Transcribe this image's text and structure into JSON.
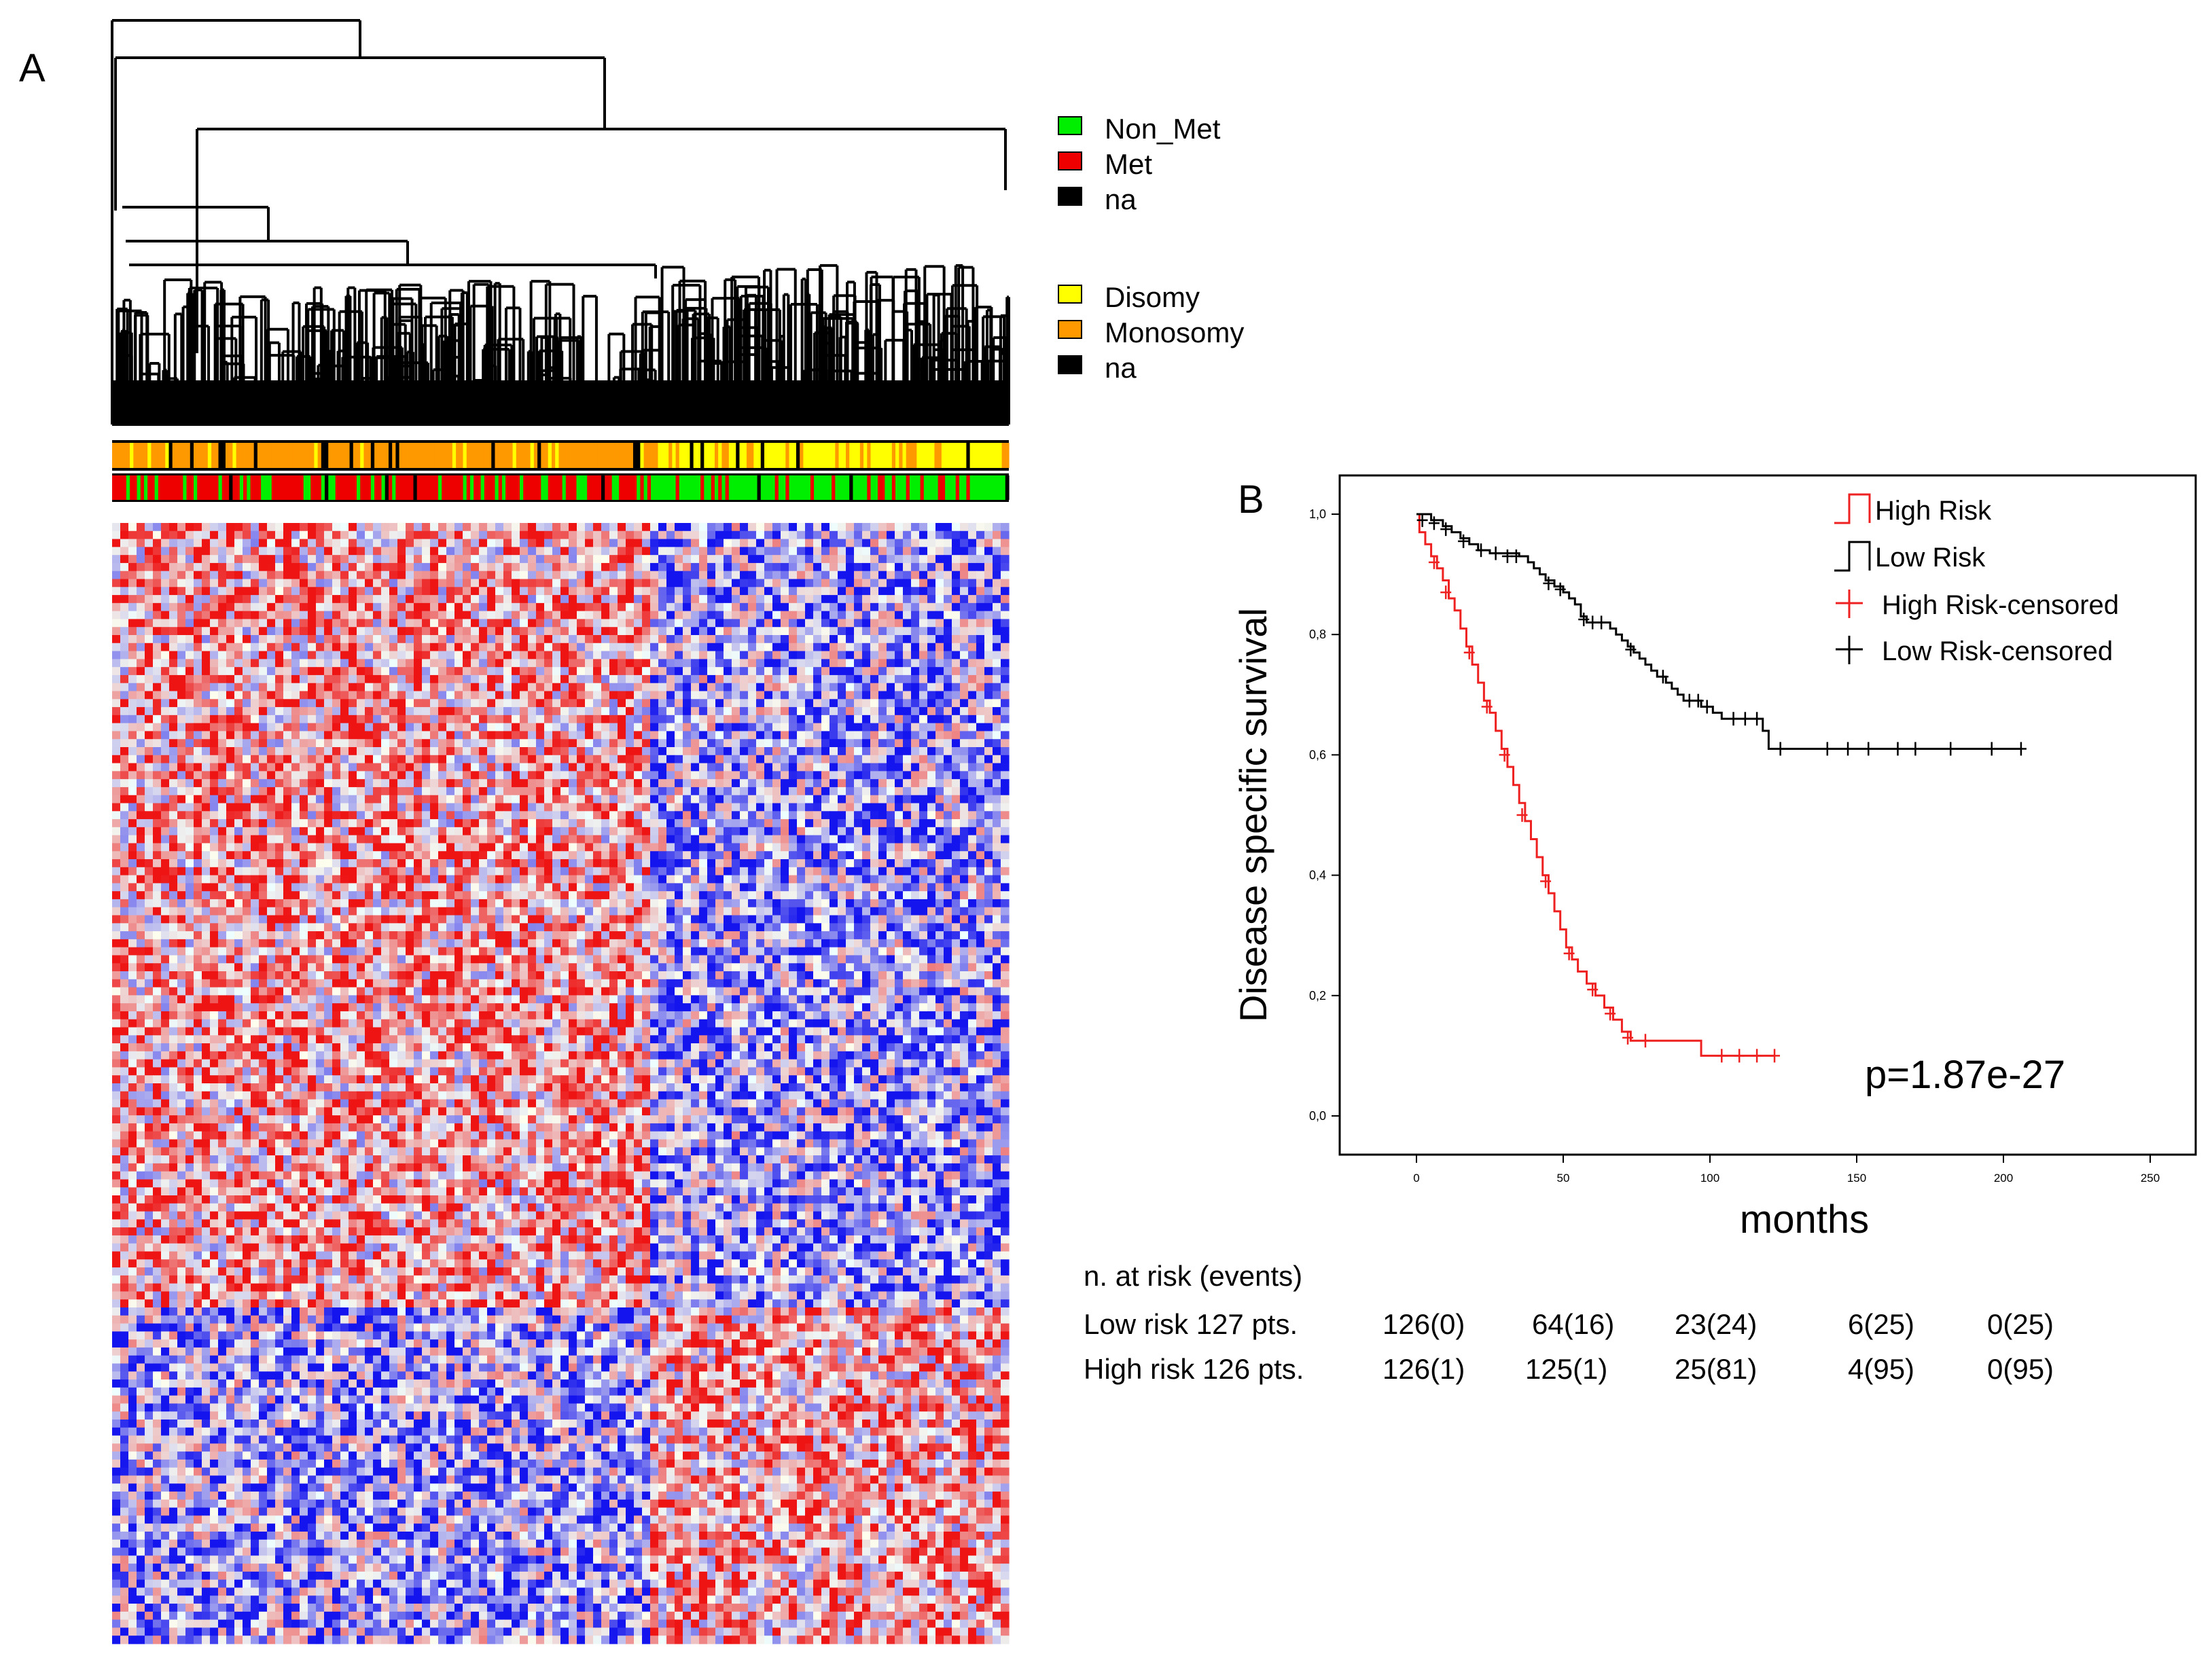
{
  "panels": {
    "a_label": "A",
    "b_label": "B"
  },
  "legend_metastasis": [
    {
      "label": "Non_Met",
      "color": "#00ee00"
    },
    {
      "label": "Met",
      "color": "#ee0000"
    },
    {
      "label": "na",
      "color": "#000000"
    }
  ],
  "legend_chromosome": [
    {
      "label": "Disomy",
      "color": "#ffff00"
    },
    {
      "label": "Monosomy",
      "color": "#ff9900"
    },
    {
      "label": "na",
      "color": "#000000"
    }
  ],
  "heatmap": {
    "low_color": "#0000ee",
    "mid_color": "#ffffff",
    "high_color": "#ee0000",
    "cluster_split_fraction": 0.6
  },
  "chart_data": {
    "type": "line",
    "xlabel": "months",
    "ylabel": "Disease specific survival",
    "xlim": [
      0,
      250
    ],
    "ylim": [
      0,
      1
    ],
    "x_ticks": [
      0,
      50,
      100,
      150,
      200,
      250
    ],
    "y_ticks": [
      "0,0",
      "0,2",
      "0,4",
      "0,6",
      "0,8",
      "1,0"
    ],
    "annotation": "p=1.87e-27",
    "legend": [
      {
        "label": "High Risk",
        "color": "#ee2020",
        "symbol": "step"
      },
      {
        "label": "Low Risk",
        "color": "#000000",
        "symbol": "step"
      },
      {
        "label": "High Risk-censored",
        "color": "#ee2020",
        "symbol": "plus"
      },
      {
        "label": "Low Risk-censored",
        "color": "#000000",
        "symbol": "plus"
      }
    ],
    "series": [
      {
        "name": "High Risk",
        "color": "#ee2020",
        "steps": [
          [
            0,
            1.0
          ],
          [
            1,
            0.97
          ],
          [
            3,
            0.95
          ],
          [
            5,
            0.93
          ],
          [
            7,
            0.91
          ],
          [
            9,
            0.89
          ],
          [
            11,
            0.86
          ],
          [
            13,
            0.84
          ],
          [
            15,
            0.81
          ],
          [
            17,
            0.78
          ],
          [
            19,
            0.75
          ],
          [
            21,
            0.72
          ],
          [
            23,
            0.69
          ],
          [
            25,
            0.67
          ],
          [
            27,
            0.64
          ],
          [
            29,
            0.61
          ],
          [
            31,
            0.58
          ],
          [
            33,
            0.55
          ],
          [
            35,
            0.52
          ],
          [
            37,
            0.49
          ],
          [
            39,
            0.46
          ],
          [
            41,
            0.43
          ],
          [
            43,
            0.4
          ],
          [
            45,
            0.37
          ],
          [
            47,
            0.34
          ],
          [
            49,
            0.31
          ],
          [
            51,
            0.28
          ],
          [
            53,
            0.26
          ],
          [
            55,
            0.24
          ],
          [
            58,
            0.22
          ],
          [
            61,
            0.2
          ],
          [
            64,
            0.18
          ],
          [
            67,
            0.16
          ],
          [
            70,
            0.14
          ],
          [
            73,
            0.125
          ],
          [
            97,
            0.1
          ],
          [
            122,
            0.1
          ]
        ],
        "censored": [
          [
            6,
            0.92
          ],
          [
            10,
            0.87
          ],
          [
            18,
            0.77
          ],
          [
            24,
            0.68
          ],
          [
            30,
            0.6
          ],
          [
            36,
            0.5
          ],
          [
            44,
            0.39
          ],
          [
            52,
            0.27
          ],
          [
            60,
            0.21
          ],
          [
            66,
            0.17
          ],
          [
            72,
            0.13
          ],
          [
            78,
            0.125
          ],
          [
            104,
            0.1
          ],
          [
            110,
            0.1
          ],
          [
            116,
            0.1
          ],
          [
            122,
            0.1
          ]
        ]
      },
      {
        "name": "Low Risk",
        "color": "#000000",
        "steps": [
          [
            0,
            1.0
          ],
          [
            5,
            0.99
          ],
          [
            9,
            0.98
          ],
          [
            12,
            0.97
          ],
          [
            15,
            0.96
          ],
          [
            18,
            0.95
          ],
          [
            21,
            0.94
          ],
          [
            25,
            0.935
          ],
          [
            35,
            0.93
          ],
          [
            38,
            0.92
          ],
          [
            40,
            0.91
          ],
          [
            42,
            0.9
          ],
          [
            44,
            0.89
          ],
          [
            47,
            0.88
          ],
          [
            50,
            0.87
          ],
          [
            52,
            0.86
          ],
          [
            54,
            0.85
          ],
          [
            56,
            0.83
          ],
          [
            58,
            0.82
          ],
          [
            66,
            0.81
          ],
          [
            68,
            0.8
          ],
          [
            70,
            0.79
          ],
          [
            72,
            0.78
          ],
          [
            74,
            0.77
          ],
          [
            76,
            0.76
          ],
          [
            78,
            0.75
          ],
          [
            80,
            0.74
          ],
          [
            82,
            0.73
          ],
          [
            85,
            0.72
          ],
          [
            87,
            0.71
          ],
          [
            89,
            0.7
          ],
          [
            91,
            0.69
          ],
          [
            97,
            0.68
          ],
          [
            101,
            0.67
          ],
          [
            104,
            0.66
          ],
          [
            118,
            0.64
          ],
          [
            120,
            0.61
          ],
          [
            206,
            0.61
          ]
        ],
        "censored": [
          [
            2,
            0.99
          ],
          [
            6,
            0.985
          ],
          [
            10,
            0.975
          ],
          [
            16,
            0.955
          ],
          [
            22,
            0.94
          ],
          [
            27,
            0.935
          ],
          [
            31,
            0.93
          ],
          [
            34,
            0.93
          ],
          [
            45,
            0.885
          ],
          [
            49,
            0.875
          ],
          [
            57,
            0.825
          ],
          [
            60,
            0.82
          ],
          [
            63,
            0.82
          ],
          [
            73,
            0.775
          ],
          [
            84,
            0.73
          ],
          [
            93,
            0.69
          ],
          [
            96,
            0.69
          ],
          [
            99,
            0.68
          ],
          [
            108,
            0.66
          ],
          [
            112,
            0.66
          ],
          [
            116,
            0.66
          ],
          [
            124,
            0.61
          ],
          [
            140,
            0.61
          ],
          [
            147,
            0.61
          ],
          [
            154,
            0.61
          ],
          [
            164,
            0.61
          ],
          [
            170,
            0.61
          ],
          [
            182,
            0.61
          ],
          [
            196,
            0.61
          ],
          [
            206,
            0.61
          ]
        ]
      }
    ]
  },
  "risk_table": {
    "header": "n. at risk (events)",
    "rows": [
      {
        "label": "Low risk 127 pts.",
        "values": [
          "126(0)",
          "64(16)",
          "23(24)",
          "6(25)",
          "0(25)"
        ]
      },
      {
        "label": "High risk 126 pts.",
        "values": [
          "126(1)",
          "125(1)",
          "25(81)",
          "4(95)",
          "0(95)"
        ]
      }
    ]
  }
}
